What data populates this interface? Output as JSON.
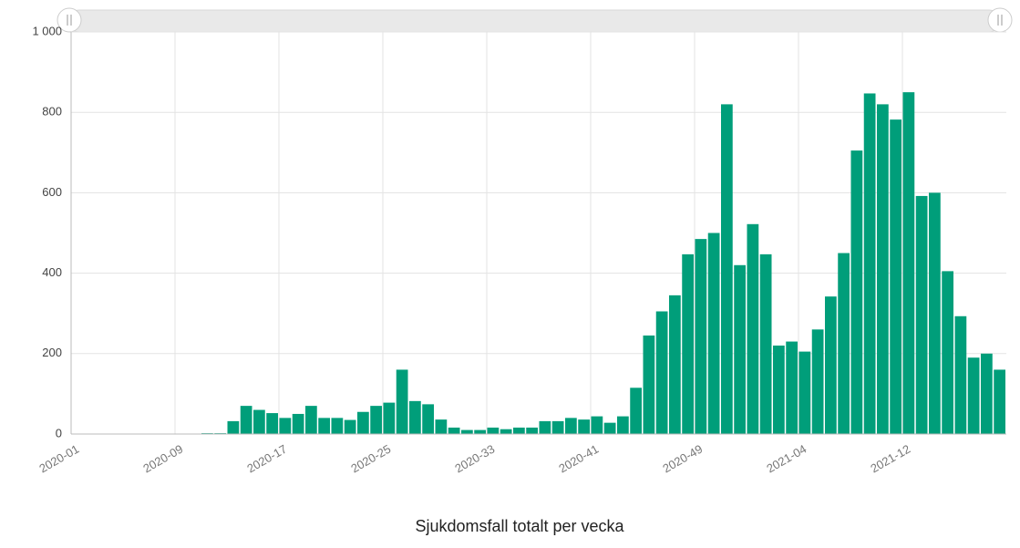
{
  "chart_data": {
    "type": "bar",
    "title": "Sjukdomsfall totalt per vecka",
    "categories": [
      "2020-01",
      null,
      null,
      null,
      null,
      null,
      null,
      null,
      "2020-09",
      null,
      null,
      null,
      null,
      null,
      null,
      null,
      "2020-17",
      null,
      null,
      null,
      null,
      null,
      null,
      null,
      "2020-25",
      null,
      null,
      null,
      null,
      null,
      null,
      null,
      "2020-33",
      null,
      null,
      null,
      null,
      null,
      null,
      null,
      "2020-41",
      null,
      null,
      null,
      null,
      null,
      null,
      null,
      "2020-49",
      null,
      null,
      null,
      null,
      null,
      null,
      null,
      "2021-04",
      null,
      null,
      null,
      null,
      null,
      null,
      null,
      "2021-12",
      null,
      null,
      null,
      null,
      null,
      null,
      null
    ],
    "values": [
      1,
      1,
      1,
      1,
      1,
      1,
      1,
      1,
      1,
      1,
      2,
      2,
      32,
      70,
      60,
      52,
      40,
      50,
      70,
      40,
      40,
      35,
      55,
      70,
      78,
      160,
      82,
      74,
      36,
      16,
      10,
      10,
      16,
      12,
      16,
      16,
      32,
      32,
      40,
      36,
      44,
      28,
      44,
      115,
      245,
      305,
      345,
      447,
      485,
      500,
      820,
      420,
      522,
      447,
      220,
      230,
      205,
      260,
      342,
      450,
      705,
      847,
      820,
      782,
      850,
      592,
      600,
      405,
      293,
      190,
      200,
      160
    ],
    "color": "#009e7a",
    "ylim": [
      0,
      1000
    ],
    "yticks": [
      0,
      200,
      400,
      600,
      800,
      {
        "value": 1000,
        "label": "1 000"
      }
    ],
    "grid": true
  }
}
